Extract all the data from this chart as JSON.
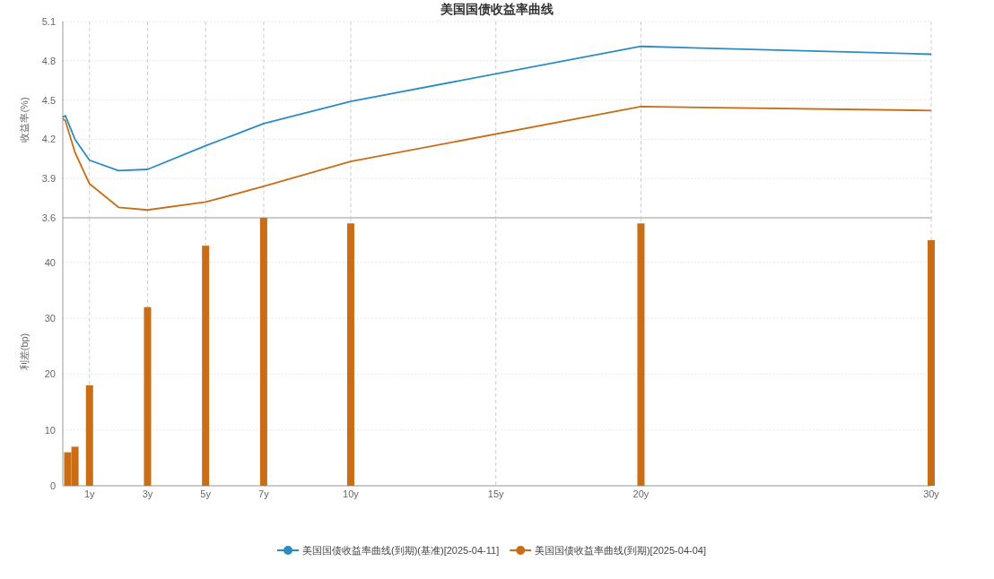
{
  "chart_data": [
    {
      "type": "line",
      "title": "美国国债收益率曲线",
      "ylabel": "收益率(%)",
      "xlim": [
        0.08,
        30
      ],
      "xticks": [
        1,
        3,
        5,
        7,
        10,
        15,
        20,
        30
      ],
      "tick_labels": "y",
      "ylim": [
        3.6,
        5.1
      ],
      "yticks": [
        3.6,
        3.9,
        4.2,
        4.5,
        4.8,
        5.1
      ],
      "grid": true,
      "legend": "bottom",
      "x": [
        0.08,
        0.17,
        0.5,
        1,
        2,
        3,
        5,
        7,
        10,
        20,
        30
      ],
      "series": [
        {
          "name": "美国国债收益率曲线(到期)(基准)[2025-04-11]",
          "color": "#2b8cc4",
          "values": [
            4.37,
            4.38,
            4.2,
            4.04,
            3.96,
            3.97,
            4.15,
            4.32,
            4.49,
            4.91,
            4.85
          ]
        },
        {
          "name": "美国国债收益率曲线(到期)[2025-04-04]",
          "color": "#c96d17",
          "values": [
            4.36,
            4.34,
            4.1,
            3.86,
            3.68,
            3.66,
            3.72,
            3.84,
            4.03,
            4.45,
            4.42
          ]
        }
      ]
    },
    {
      "type": "bar",
      "ylabel": "利差(bp)",
      "xlim": [
        0.08,
        30
      ],
      "xticks": [
        {
          "value": 1,
          "label": "1y"
        },
        {
          "value": 3,
          "label": "3y"
        },
        {
          "value": 5,
          "label": "5y"
        },
        {
          "value": 7,
          "label": "7y"
        },
        {
          "value": 10,
          "label": "10y"
        },
        {
          "value": 15,
          "label": "15y"
        },
        {
          "value": 20,
          "label": "20y"
        },
        {
          "value": 30,
          "label": "30y"
        }
      ],
      "ylim": [
        0,
        48
      ],
      "yticks": [
        0,
        10,
        20,
        30,
        40
      ],
      "grid": true,
      "x": [
        0.25,
        0.5,
        1,
        3,
        5,
        7,
        10,
        20,
        30
      ],
      "values": [
        6,
        7,
        18,
        32,
        43,
        48,
        47,
        47,
        44
      ],
      "color": "#c96d17"
    }
  ]
}
